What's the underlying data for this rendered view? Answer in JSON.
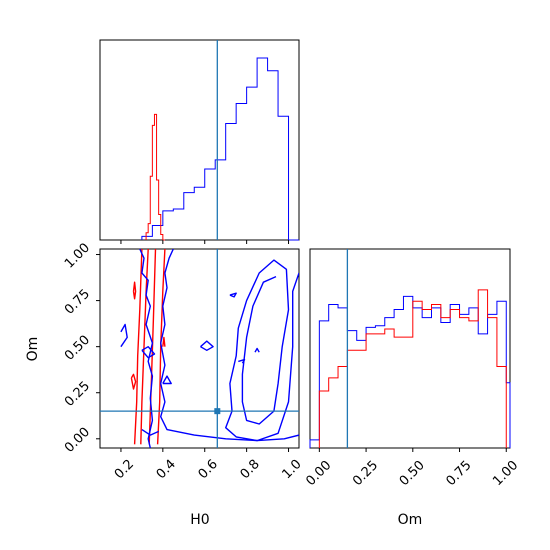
{
  "chart_data": {
    "type": "corner",
    "parameters": [
      "H0",
      "Om"
    ],
    "truth": {
      "H0": 0.66,
      "Om": 0.15
    },
    "colors": {
      "red": "#ff0000",
      "blue": "#0000ff",
      "truth": "#1f77b4"
    },
    "grid": false,
    "panels": {
      "H0_hist": {
        "xlim": [
          0.1,
          1.05
        ],
        "ticks": [
          0.2,
          0.4,
          0.6,
          0.8,
          1.0
        ],
        "red": {
          "edges": [
            0.32,
            0.33,
            0.34,
            0.35,
            0.36,
            0.37,
            0.38,
            0.39,
            0.4,
            0.41
          ],
          "heights": [
            0.04,
            0.09,
            0.35,
            0.63,
            0.69,
            0.33,
            0.14,
            0.03,
            0.0
          ]
        },
        "blue": {
          "edges": [
            0.3,
            0.35,
            0.4,
            0.45,
            0.5,
            0.55,
            0.6,
            0.65,
            0.7,
            0.75,
            0.8,
            0.85,
            0.9,
            0.95,
            1.0,
            1.05
          ],
          "heights": [
            0.02,
            0.08,
            0.16,
            0.17,
            0.26,
            0.29,
            0.39,
            0.44,
            0.64,
            0.75,
            0.84,
            1.0,
            0.93,
            0.68,
            0.0
          ]
        }
      },
      "Om_hist": {
        "xlim": [
          -0.05,
          1.02
        ],
        "ticks": [
          0.0,
          0.25,
          0.5,
          0.75,
          1.0
        ],
        "ticklabels": [
          "0.00",
          "0.25",
          "0.50",
          "0.75",
          "1.00"
        ],
        "red": {
          "edges": [
            0.0,
            0.05,
            0.1,
            0.15,
            0.2,
            0.25,
            0.3,
            0.35,
            0.4,
            0.45,
            0.5,
            0.55,
            0.6,
            0.65,
            0.7,
            0.75,
            0.8,
            0.85,
            0.9,
            0.95,
            1.0
          ],
          "heights": [
            0.35,
            0.43,
            0.5,
            0.6,
            0.6,
            0.7,
            0.7,
            0.73,
            0.68,
            0.68,
            0.9,
            0.85,
            0.88,
            0.8,
            0.85,
            0.8,
            0.78,
            0.97,
            0.8,
            0.5
          ]
        },
        "blue": {
          "edges": [
            -0.05,
            0.0,
            0.05,
            0.1,
            0.15,
            0.2,
            0.25,
            0.3,
            0.35,
            0.4,
            0.45,
            0.5,
            0.55,
            0.6,
            0.65,
            0.7,
            0.75,
            0.8,
            0.85,
            0.9,
            0.95,
            1.0,
            1.02
          ],
          "heights": [
            0.05,
            0.78,
            0.88,
            0.86,
            0.72,
            0.66,
            0.74,
            0.75,
            0.8,
            0.85,
            0.93,
            0.86,
            0.8,
            0.86,
            0.77,
            0.88,
            0.82,
            0.86,
            0.7,
            0.82,
            0.9,
            0.4
          ]
        }
      },
      "joint": {
        "xlim": [
          0.1,
          1.05
        ],
        "ylim": [
          -0.05,
          1.03
        ],
        "xticks": [
          0.2,
          0.4,
          0.6,
          0.8,
          1.0
        ],
        "yticks": [
          0.0,
          0.25,
          0.5,
          0.75,
          1.0
        ],
        "yticklabels": [
          "0.00",
          "0.25",
          "0.50",
          "0.75",
          "1.00"
        ],
        "contours": [
          {
            "color": "red",
            "points": [
              [
                0.265,
                -0.03
              ],
              [
                0.275,
                0.2
              ],
              [
                0.28,
                0.45
              ],
              [
                0.29,
                0.7
              ],
              [
                0.3,
                1.03
              ]
            ]
          },
          {
            "color": "red",
            "points": [
              [
                0.295,
                -0.03
              ],
              [
                0.3,
                0.2
              ],
              [
                0.31,
                0.5
              ],
              [
                0.32,
                0.8
              ],
              [
                0.33,
                1.03
              ]
            ]
          },
          {
            "color": "red",
            "points": [
              [
                0.335,
                -0.03
              ],
              [
                0.345,
                0.3
              ],
              [
                0.355,
                0.65
              ],
              [
                0.365,
                1.03
              ]
            ]
          },
          {
            "color": "red",
            "points": [
              [
                0.375,
                -0.03
              ],
              [
                0.385,
                0.2
              ],
              [
                0.39,
                0.5
              ],
              [
                0.4,
                0.8
              ],
              [
                0.41,
                1.03
              ]
            ]
          },
          {
            "color": "red",
            "points": [
              [
                0.25,
                0.33
              ],
              [
                0.26,
                0.35
              ],
              [
                0.27,
                0.31
              ],
              [
                0.26,
                0.27
              ],
              [
                0.25,
                0.33
              ]
            ]
          },
          {
            "color": "red",
            "points": [
              [
                0.26,
                0.8
              ],
              [
                0.265,
                0.85
              ],
              [
                0.27,
                0.8
              ],
              [
                0.265,
                0.76
              ],
              [
                0.26,
                0.8
              ]
            ]
          },
          {
            "color": "red",
            "points": [
              [
                0.4,
                0.5
              ],
              [
                0.405,
                0.55
              ],
              [
                0.41,
                0.5
              ]
            ]
          },
          {
            "color": "blue",
            "points": [
              [
                0.29,
                1.03
              ],
              [
                0.31,
                0.98
              ],
              [
                0.3,
                0.9
              ],
              [
                0.33,
                0.86
              ],
              [
                0.32,
                0.78
              ],
              [
                0.34,
                0.72
              ],
              [
                0.32,
                0.62
              ],
              [
                0.35,
                0.52
              ],
              [
                0.33,
                0.42
              ],
              [
                0.35,
                0.34
              ],
              [
                0.34,
                0.22
              ],
              [
                0.35,
                0.1
              ],
              [
                0.33,
                0.0
              ],
              [
                0.34,
                -0.05
              ]
            ]
          },
          {
            "color": "blue",
            "points": [
              [
                0.45,
                1.03
              ],
              [
                0.43,
                0.98
              ],
              [
                0.41,
                0.9
              ],
              [
                0.42,
                0.82
              ],
              [
                0.4,
                0.72
              ],
              [
                0.41,
                0.62
              ],
              [
                0.39,
                0.52
              ],
              [
                0.41,
                0.4
              ],
              [
                0.39,
                0.3
              ],
              [
                0.41,
                0.2
              ],
              [
                0.39,
                0.12
              ],
              [
                0.42,
                0.05
              ],
              [
                0.55,
                0.02
              ],
              [
                0.7,
                0.0
              ],
              [
                0.85,
                -0.01
              ],
              [
                0.98,
                0.0
              ],
              [
                1.05,
                0.02
              ]
            ]
          },
          {
            "color": "blue",
            "points": [
              [
                1.05,
                0.9
              ],
              [
                1.02,
                0.8
              ],
              [
                1.02,
                0.5
              ],
              [
                1.0,
                0.2
              ],
              [
                0.95,
                0.03
              ],
              [
                0.85,
                -0.01
              ],
              [
                0.75,
                0.01
              ],
              [
                0.7,
                0.06
              ],
              [
                0.73,
                0.15
              ],
              [
                0.72,
                0.3
              ],
              [
                0.75,
                0.45
              ],
              [
                0.76,
                0.6
              ],
              [
                0.8,
                0.75
              ],
              [
                0.86,
                0.9
              ],
              [
                0.93,
                0.97
              ],
              [
                0.99,
                0.92
              ],
              [
                1.0,
                0.7
              ],
              [
                0.97,
                0.5
              ],
              [
                0.95,
                0.3
              ],
              [
                0.93,
                0.15
              ],
              [
                0.86,
                0.08
              ],
              [
                0.8,
                0.1
              ],
              [
                0.78,
                0.2
              ],
              [
                0.78,
                0.35
              ],
              [
                0.8,
                0.55
              ],
              [
                0.83,
                0.72
              ],
              [
                0.88,
                0.85
              ],
              [
                0.94,
                0.88
              ]
            ]
          },
          {
            "color": "blue",
            "points": [
              [
                0.3,
                0.48
              ],
              [
                0.33,
                0.5
              ],
              [
                0.36,
                0.46
              ],
              [
                0.33,
                0.44
              ],
              [
                0.3,
                0.48
              ]
            ]
          },
          {
            "color": "blue",
            "points": [
              [
                0.4,
                0.3
              ],
              [
                0.42,
                0.34
              ],
              [
                0.44,
                0.3
              ],
              [
                0.4,
                0.3
              ]
            ]
          },
          {
            "color": "blue",
            "points": [
              [
                0.58,
                0.5
              ],
              [
                0.61,
                0.53
              ],
              [
                0.64,
                0.5
              ],
              [
                0.61,
                0.48
              ],
              [
                0.58,
                0.5
              ]
            ]
          },
          {
            "color": "blue",
            "points": [
              [
                0.72,
                0.78
              ],
              [
                0.75,
                0.79
              ],
              [
                0.74,
                0.77
              ],
              [
                0.72,
                0.78
              ]
            ]
          },
          {
            "color": "blue",
            "points": [
              [
                0.76,
                0.42
              ],
              [
                0.79,
                0.43
              ],
              [
                0.78,
                0.41
              ]
            ]
          },
          {
            "color": "blue",
            "points": [
              [
                0.84,
                0.47
              ],
              [
                0.85,
                0.49
              ],
              [
                0.86,
                0.47
              ]
            ]
          },
          {
            "color": "blue",
            "points": [
              [
                0.2,
                0.5
              ],
              [
                0.23,
                0.55
              ],
              [
                0.22,
                0.62
              ],
              [
                0.2,
                0.58
              ]
            ]
          },
          {
            "color": "blue",
            "points": [
              [
                0.3,
                0.05
              ],
              [
                0.34,
                0.02
              ],
              [
                0.38,
                0.04
              ]
            ]
          }
        ]
      }
    },
    "xlabels": [
      "H0",
      "Om"
    ],
    "ylabel": "Om"
  }
}
